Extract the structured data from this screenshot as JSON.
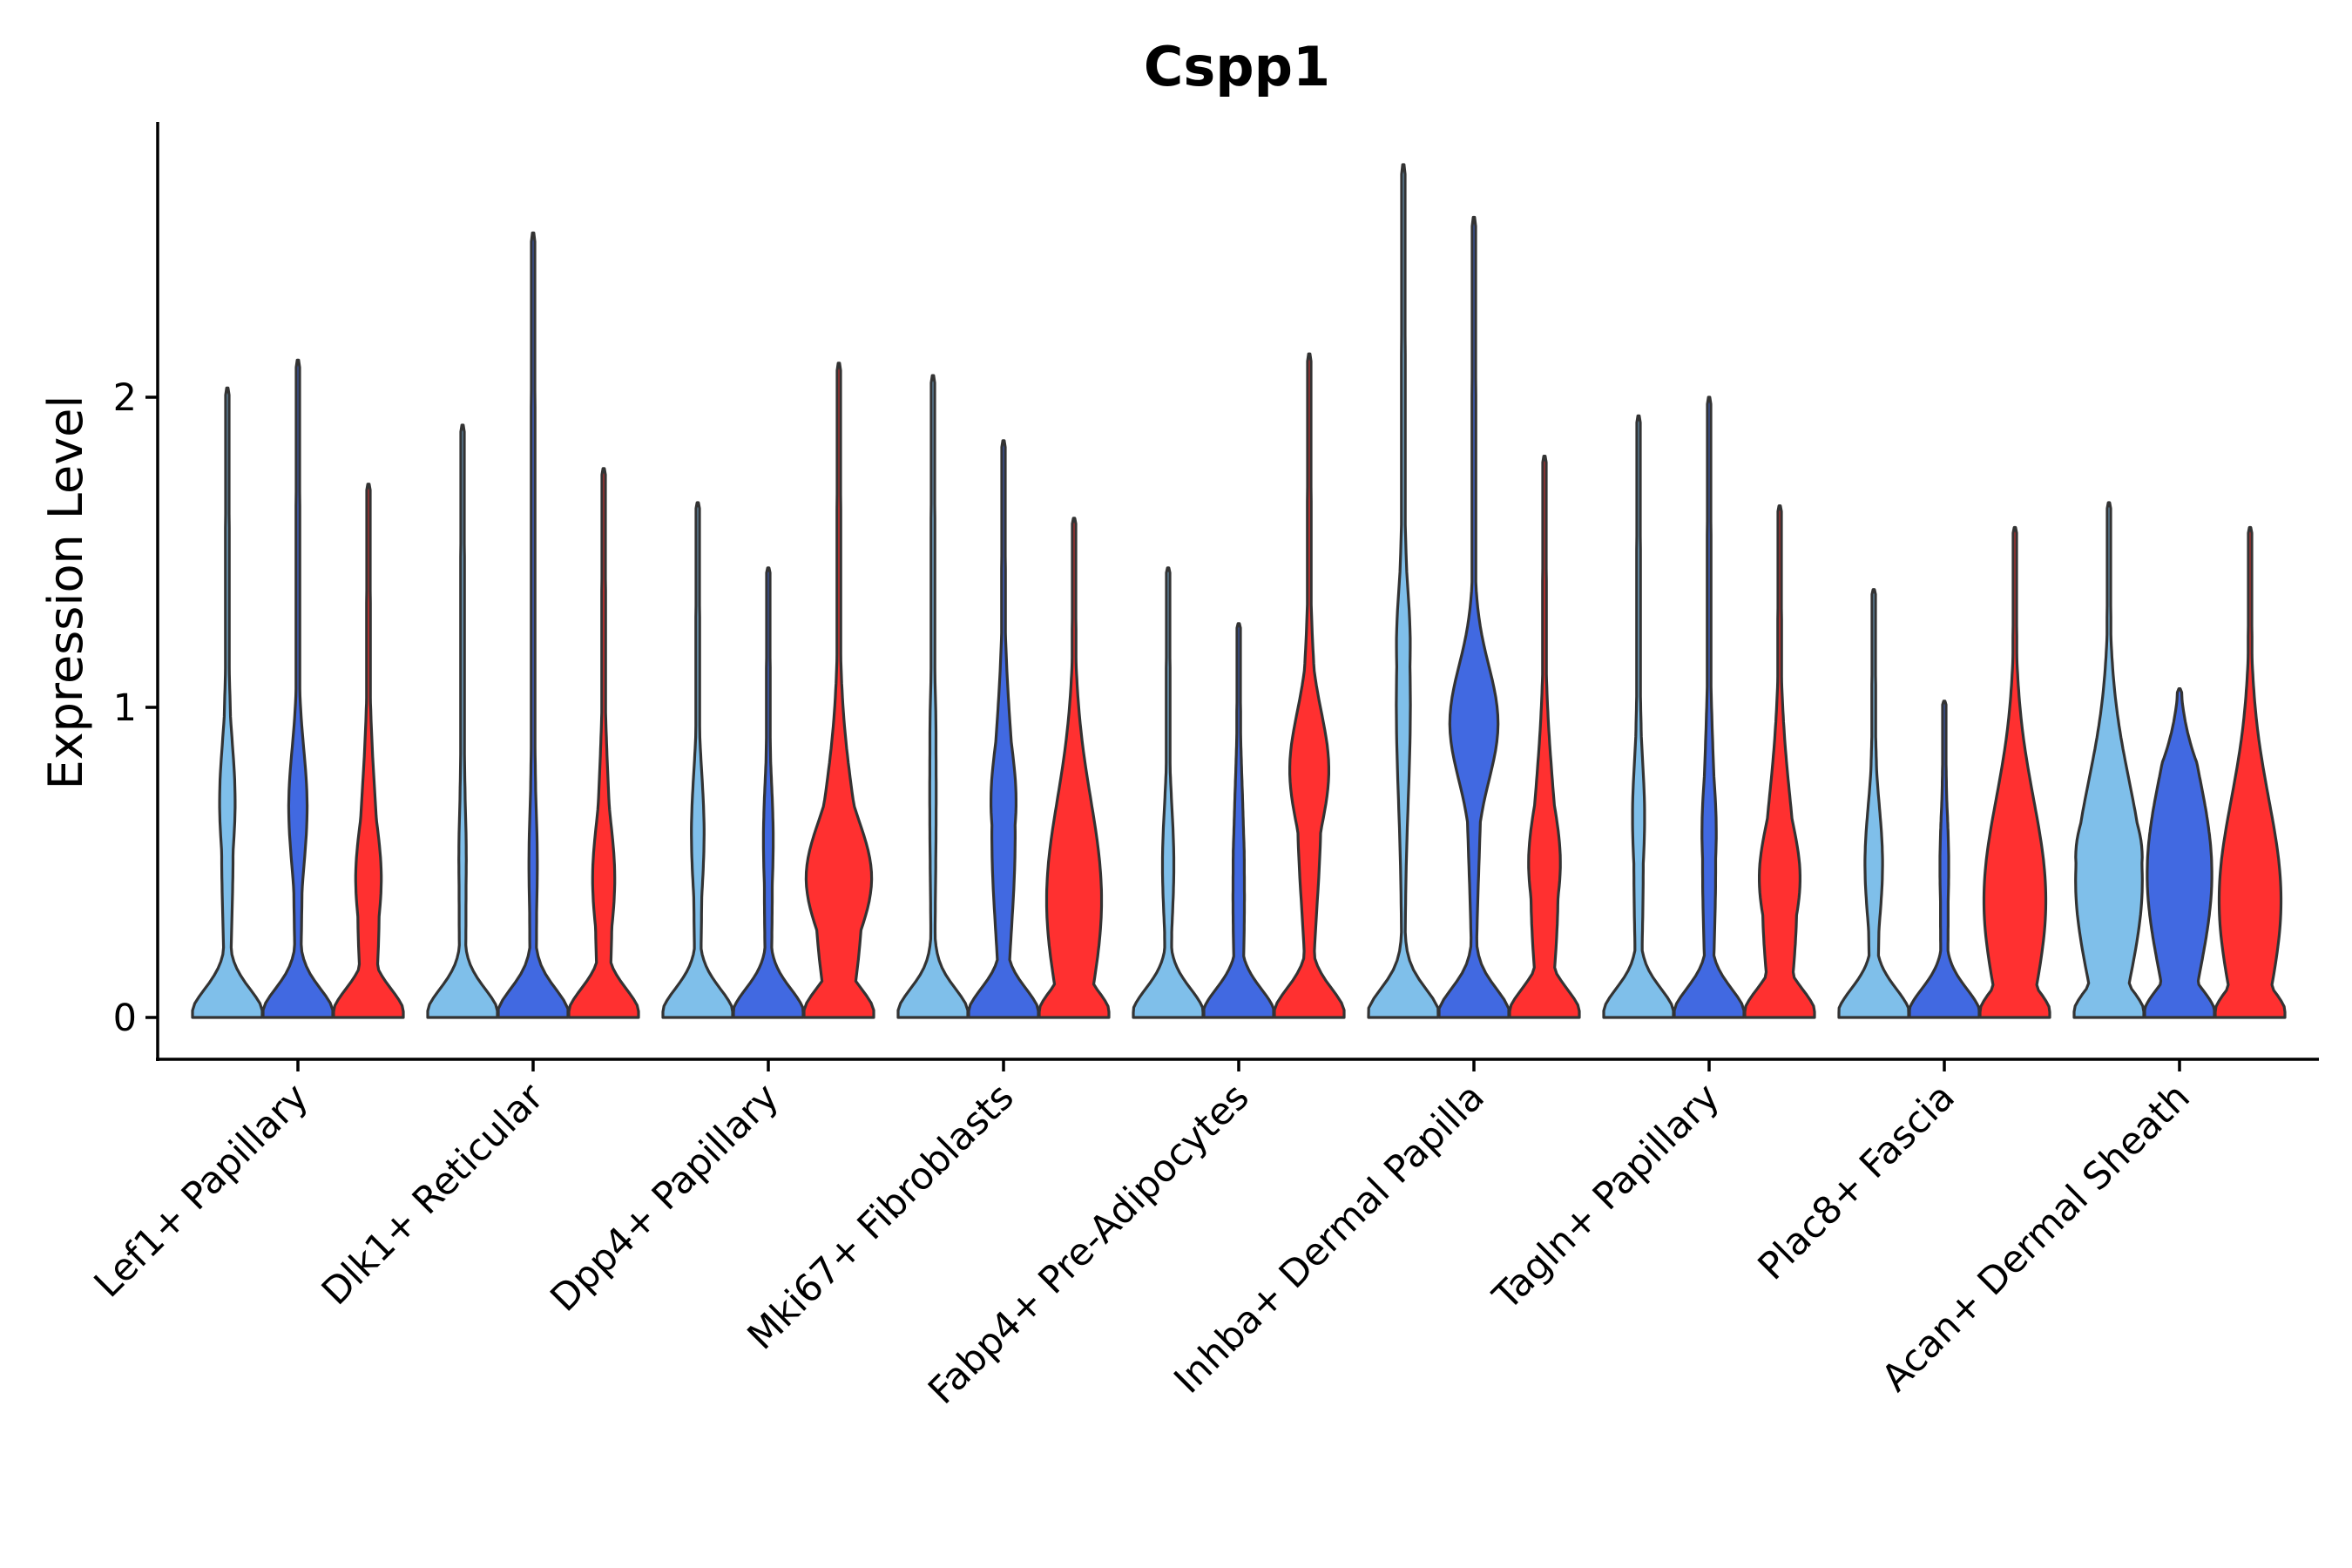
{
  "chart_data": {
    "type": "violin",
    "title": "Cspp1",
    "xlabel": "",
    "ylabel": "Expression Level",
    "ylim": [
      -0.14,
      2.9
    ],
    "yticks": [
      0,
      1,
      2
    ],
    "grid": false,
    "legend": "none",
    "categories": [
      "Lef1+ Papillary",
      "Dlk1+ Reticular",
      "Dpp4+ Papillary",
      "Mki67+ Fibroblasts",
      "Fabp4+ Pre-Adipocytes",
      "Inhba+ Dermal Papilla",
      "Tagln+ Papillary",
      "Plac8+ Fascia",
      "Acan+ Dermal Sheath"
    ],
    "series": [
      {
        "name": "group-1",
        "color": "#7fbfea",
        "values": [
          {
            "max": 2.03,
            "w0": 1.0,
            "w1": 0.13,
            "mode": 0.7,
            "mw": 0.19
          },
          {
            "max": 1.91,
            "w0": 1.0,
            "w1": 0.06,
            "mode": 0.52,
            "mw": 0.07
          },
          {
            "max": 1.66,
            "w0": 1.0,
            "w1": 0.08,
            "mode": 0.6,
            "mw": 0.15
          },
          {
            "max": 2.07,
            "w0": 1.0,
            "w1": 0.06,
            "mode": 0.9,
            "mw": 0.06
          },
          {
            "max": 1.45,
            "w0": 1.0,
            "w1": 0.07,
            "mode": 0.5,
            "mw": 0.13
          },
          {
            "max": 2.75,
            "w0": 1.0,
            "w1": 0.17,
            "mode": 1.2,
            "mw": 0.17
          },
          {
            "max": 1.94,
            "w0": 1.0,
            "w1": 0.1,
            "mode": 0.65,
            "mw": 0.14
          },
          {
            "max": 1.38,
            "w0": 1.0,
            "w1": 0.12,
            "mode": 0.5,
            "mw": 0.22
          },
          {
            "max": 1.66,
            "w0": 1.0,
            "w1": 0.92,
            "mode": 0.52,
            "mw": 0.92
          }
        ]
      },
      {
        "name": "group-2",
        "color": "#4169e1",
        "values": [
          {
            "max": 2.12,
            "w0": 1.0,
            "w1": 0.09,
            "mode": 0.68,
            "mw": 0.23
          },
          {
            "max": 2.53,
            "w0": 1.0,
            "w1": 0.06,
            "mode": 0.5,
            "mw": 0.08
          },
          {
            "max": 1.45,
            "w0": 1.0,
            "w1": 0.08,
            "mode": 0.58,
            "mw": 0.11
          },
          {
            "max": 1.86,
            "w0": 1.0,
            "w1": 0.3,
            "mode": 0.7,
            "mw": 0.33
          },
          {
            "max": 1.27,
            "w0": 1.0,
            "w1": 0.13,
            "mode": 0.5,
            "mw": 0.13
          },
          {
            "max": 2.58,
            "w0": 1.0,
            "w1": 0.17,
            "mode": 0.95,
            "mw": 0.66
          },
          {
            "max": 2.0,
            "w0": 1.0,
            "w1": 0.15,
            "mode": 0.6,
            "mw": 0.17
          },
          {
            "max": 1.02,
            "w0": 1.0,
            "w1": 0.08,
            "mode": 0.5,
            "mw": 0.1
          },
          {
            "max": 1.06,
            "w0": 1.0,
            "w1": 0.9,
            "mode": 0.55,
            "mw": 0.8
          }
        ]
      },
      {
        "name": "group-3",
        "color": "#ff3030",
        "values": [
          {
            "max": 1.72,
            "w0": 1.0,
            "w1": 0.27,
            "mode": 0.45,
            "mw": 0.33
          },
          {
            "max": 1.77,
            "w0": 1.0,
            "w1": 0.2,
            "mode": 0.45,
            "mw": 0.28
          },
          {
            "max": 2.11,
            "w0": 1.0,
            "w1": 0.62,
            "mode": 0.45,
            "mw": 0.9
          },
          {
            "max": 1.61,
            "w0": 1.0,
            "w1": 0.75,
            "mode": 0.45,
            "mw": 0.7
          },
          {
            "max": 2.14,
            "w0": 1.0,
            "w1": 0.3,
            "mode": 0.8,
            "mw": 0.53
          },
          {
            "max": 1.81,
            "w0": 1.0,
            "w1": 0.35,
            "mode": 0.5,
            "mw": 0.42
          },
          {
            "max": 1.65,
            "w0": 1.0,
            "w1": 0.45,
            "mode": 0.45,
            "mw": 0.55
          },
          {
            "max": 1.58,
            "w0": 1.0,
            "w1": 0.85,
            "mode": 0.45,
            "mw": 0.75
          },
          {
            "max": 1.58,
            "w0": 1.0,
            "w1": 0.85,
            "mode": 0.45,
            "mw": 0.75
          }
        ]
      }
    ]
  }
}
